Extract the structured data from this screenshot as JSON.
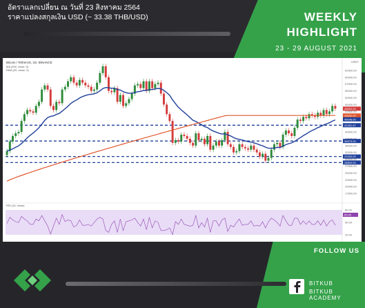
{
  "header": {
    "thai_line1": "อัตราแลกเปลี่ยน ณ วันที่ 23 สิงหาคม 2564",
    "thai_line2": "ราคาแปลงสกุลเงิน USD (~ 33.38 THB/USD)",
    "title_line1": "WEEKLY",
    "title_line2": "HIGHLIGHT",
    "dates": "23 - 29 AUGUST 2021"
  },
  "footer": {
    "follow": "FOLLOW US",
    "social1": "BITKUB",
    "social2": "BITKUB ACADEMY"
  },
  "colors": {
    "brand_green": "#35a24a",
    "dark_bg": "#26262a",
    "ma_color": "#e0572e",
    "ema_color": "#1f3f9a",
    "up_candle": "#2e8b3a",
    "down_candle": "#d43c3c"
  },
  "chart_data": {
    "type": "candlestick",
    "title": "Bitcoin / TetherUS, 1D, BINANCE",
    "legend": [
      "MA (200, close, 0)",
      "EMA (20, close, 0)"
    ],
    "ylabel_top": "USDT",
    "ylim": [
      15000,
      65000
    ],
    "y_ticks": [
      62500,
      60000,
      57500,
      55000,
      52500,
      50000,
      47500,
      45000,
      42500,
      40000,
      37500,
      35000,
      32500,
      30000,
      27500,
      25000,
      22500,
      20000,
      17500
    ],
    "price_labels": {
      "last": "48500.00",
      "ma": "45632.00",
      "ema": "45048.00"
    },
    "support_resistance": [
      {
        "label": "42451.67",
        "value": 42451
      },
      {
        "label": "36675.00",
        "value": 36675
      },
      {
        "label": "31000.00",
        "value": 31000
      },
      {
        "label": "28800.00",
        "value": 28800
      }
    ],
    "close_series": [
      33000,
      36500,
      38500,
      39500,
      40000,
      44000,
      46500,
      48000,
      47500,
      47000,
      49500,
      51000,
      55500,
      57000,
      55500,
      49500,
      48000,
      51000,
      50500,
      55500,
      56500,
      58500,
      60000,
      58000,
      57000,
      59000,
      58000,
      57000,
      56500,
      55000,
      55500,
      58000,
      61500,
      64000,
      60000,
      55000,
      54500,
      56000,
      51000,
      53500,
      49500,
      50500,
      52000,
      54000,
      57000,
      57500,
      56000,
      58500,
      55000,
      58500,
      56000,
      57500,
      58000,
      54000,
      50000,
      46500,
      44000,
      36000,
      37000,
      36500,
      39000,
      38500,
      37500,
      36000,
      35000,
      39500,
      37000,
      37500,
      35500,
      38500,
      33500,
      35000,
      36500,
      35000,
      37000,
      40000,
      35500,
      34500,
      32500,
      33000,
      35500,
      34500,
      34000,
      33500,
      35000,
      33500,
      32500,
      31000,
      32000,
      29500,
      30500,
      33500,
      35500,
      36000,
      34500,
      39000,
      40500,
      39500,
      38500,
      41500,
      44500,
      44000,
      45500,
      45000,
      46500,
      46000,
      45500,
      47000,
      46000,
      48000,
      46500,
      47500,
      49500,
      48500
    ]
  },
  "rsi": {
    "label": "RSI (14, close)",
    "value_label": "65.95",
    "levels": [
      "80.00",
      "50.00",
      "20.00"
    ]
  }
}
